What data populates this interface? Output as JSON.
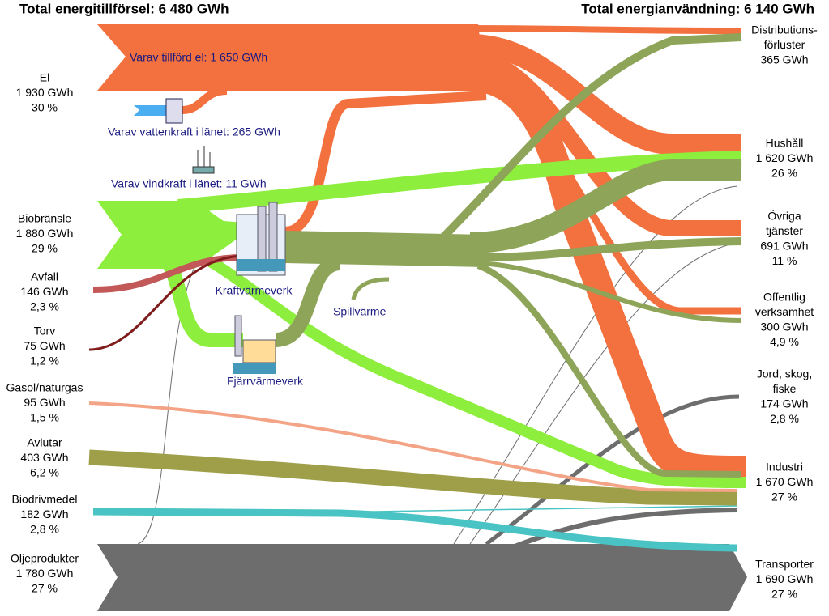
{
  "header": {
    "supply_total": "Total energitillförsel: 6 480 GWh",
    "use_total": "Total energianvändning: 6 140 GWh"
  },
  "sources": [
    {
      "lines": [
        "El",
        "1 930 GWh",
        "30 %"
      ]
    },
    {
      "lines": [
        "Biobränsle",
        "1 880 GWh",
        "29 %"
      ]
    },
    {
      "lines": [
        "Avfall",
        "146 GWh",
        "2,3 %"
      ]
    },
    {
      "lines": [
        "Torv",
        "75 GWh",
        "1,2 %"
      ]
    },
    {
      "lines": [
        "Gasol/naturgas",
        "95 GWh",
        "1,5 %"
      ]
    },
    {
      "lines": [
        "Avlutar",
        "403 GWh",
        "6,2 %"
      ]
    },
    {
      "lines": [
        "Biodrivmedel",
        "182 GWh",
        "2,8 %"
      ]
    },
    {
      "lines": [
        "Oljeprodukter",
        "1 780 GWh",
        "27 %"
      ]
    }
  ],
  "uses": [
    {
      "lines": [
        "Distributions-",
        "förluster",
        "365 GWh"
      ]
    },
    {
      "lines": [
        "Hushåll",
        "1 620 GWh",
        "26 %"
      ]
    },
    {
      "lines": [
        "Övriga",
        "tjänster",
        "691 GWh",
        "11 %"
      ]
    },
    {
      "lines": [
        "Offentlig",
        "verksamhet",
        "300 GWh",
        "4,9 %"
      ]
    },
    {
      "lines": [
        "Jord, skog,",
        "fiske",
        "174 GWh",
        "2,8 %"
      ]
    },
    {
      "lines": [
        "Industri",
        "1 670 GWh",
        "27 %"
      ]
    },
    {
      "lines": [
        "Transporter",
        "1 690 GWh",
        "27 %"
      ]
    }
  ],
  "annotations": {
    "el_supplied": "Varav tillförd el: 1 650 GWh",
    "hydro": "Varav vattenkraft i länet: 265 GWh",
    "wind": "Varav vindkraft i länet: 11 GWh",
    "chp": "Kraftvärmeverk",
    "district_heating": "Fjärrvärmeverk",
    "waste_heat": "Spillvärme"
  }
}
